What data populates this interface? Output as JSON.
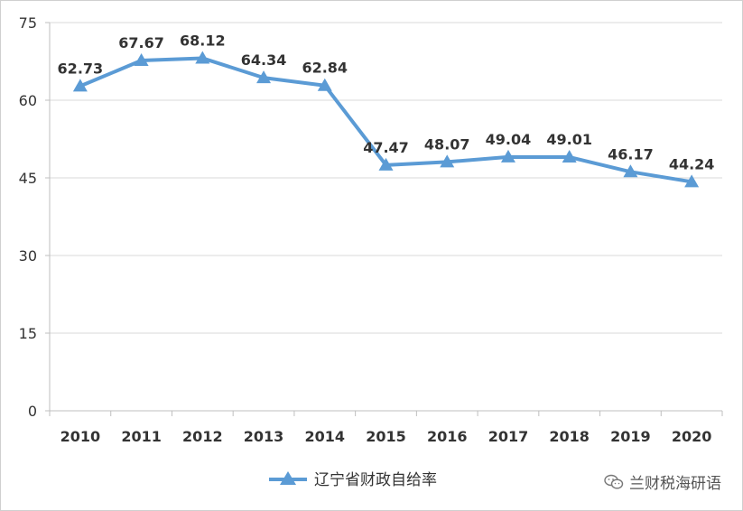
{
  "chart_data": {
    "type": "line",
    "categories": [
      "2010",
      "2011",
      "2012",
      "2013",
      "2014",
      "2015",
      "2016",
      "2017",
      "2018",
      "2019",
      "2020"
    ],
    "series": [
      {
        "name": "辽宁省财政自给率",
        "values": [
          62.73,
          67.67,
          68.12,
          64.34,
          62.84,
          47.47,
          48.07,
          49.04,
          49.01,
          46.17,
          44.24
        ],
        "color": "#5b9bd5",
        "marker": "triangle"
      }
    ],
    "ylim": [
      0,
      75
    ],
    "yticks": [
      0,
      15,
      30,
      45,
      60,
      75
    ],
    "grid": true,
    "legend_position": "bottom-center",
    "title": "",
    "xlabel": "",
    "ylabel": ""
  },
  "watermark": {
    "text": "兰财税海研语",
    "icon": "wechat-icon"
  }
}
